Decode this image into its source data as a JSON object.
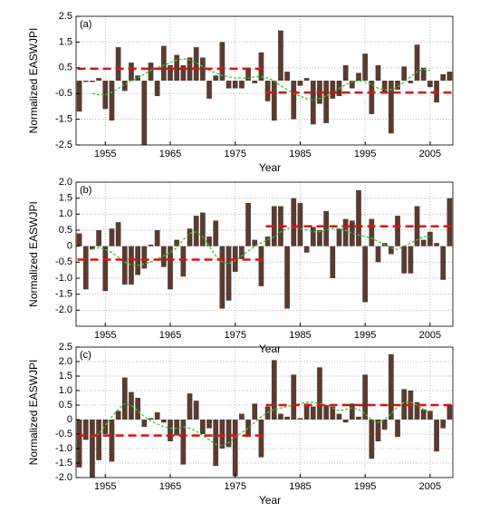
{
  "chart_data": [
    {
      "type": "bar",
      "label": "(a)",
      "y_label": "Normalized EASWJPI",
      "x_label": "Year",
      "x": [
        1951,
        1952,
        1953,
        1954,
        1955,
        1956,
        1957,
        1958,
        1959,
        1960,
        1961,
        1962,
        1963,
        1964,
        1965,
        1966,
        1967,
        1968,
        1969,
        1970,
        1971,
        1972,
        1973,
        1974,
        1975,
        1976,
        1977,
        1978,
        1979,
        1980,
        1981,
        1982,
        1983,
        1984,
        1985,
        1986,
        1987,
        1988,
        1989,
        1990,
        1991,
        1992,
        1993,
        1994,
        1995,
        1996,
        1997,
        1998,
        1999,
        2000,
        2001,
        2002,
        2003,
        2004,
        2005,
        2006,
        2007,
        2008
      ],
      "values": [
        -1.2,
        -0.05,
        -0.05,
        0.1,
        -1.1,
        -1.55,
        1.3,
        -0.4,
        0.7,
        0.2,
        -2.5,
        0.7,
        -0.6,
        1.35,
        0.6,
        1.0,
        0.6,
        0.9,
        1.3,
        0.9,
        -0.7,
        0.2,
        1.5,
        -0.3,
        -0.3,
        -0.3,
        0.5,
        -0.1,
        1.1,
        -0.8,
        -1.55,
        1.95,
        0.35,
        -1.5,
        -0.2,
        0.1,
        -1.7,
        -0.9,
        -1.65,
        -0.7,
        -0.6,
        0.6,
        -0.3,
        0.3,
        1.05,
        -1.3,
        0.6,
        -0.5,
        -2.05,
        -0.35,
        0.55,
        -0.1,
        1.4,
        0.5,
        -0.25,
        -0.85,
        0.25,
        0.35
      ],
      "smooth": [
        null,
        null,
        -0.5,
        -0.55,
        -0.55,
        -0.45,
        -0.3,
        -0.15,
        0.0,
        0.1,
        0.25,
        0.4,
        0.5,
        0.6,
        0.7,
        0.8,
        0.85,
        0.8,
        0.7,
        0.55,
        0.4,
        0.3,
        0.2,
        0.15,
        0.1,
        0.1,
        0.1,
        0.15,
        0.15,
        0.1,
        0.0,
        -0.2,
        -0.35,
        -0.5,
        -0.6,
        -0.7,
        -0.75,
        -0.7,
        -0.6,
        -0.45,
        -0.3,
        -0.15,
        -0.05,
        0.0,
        -0.05,
        -0.15,
        -0.3,
        -0.35,
        -0.35,
        -0.25,
        -0.05,
        0.15,
        0.35,
        0.45,
        0.4,
        null,
        null,
        null
      ],
      "mean_lines": [
        {
          "start": 1951,
          "end": 1979,
          "value": 0.46
        },
        {
          "start": 1980,
          "end": 2008,
          "value": -0.46
        }
      ],
      "xlim": [
        1950.5,
        2008.5
      ],
      "ylim": [
        -2.5,
        2.5
      ],
      "xticks": [
        1955,
        1965,
        1975,
        1985,
        1995,
        2005
      ],
      "yticks": [
        2.5,
        1.5,
        0.5,
        -0.5,
        -1.5,
        -2.5
      ],
      "grid": true,
      "bar_color": "#5a3b30",
      "smooth_color": "#33cc33",
      "mean_color": "#dd1111"
    },
    {
      "type": "bar",
      "label": "(b)",
      "y_label": "Normalized EASWJPI",
      "x_label": "Year",
      "x": [
        1951,
        1952,
        1953,
        1954,
        1955,
        1956,
        1957,
        1958,
        1959,
        1960,
        1961,
        1962,
        1963,
        1964,
        1965,
        1966,
        1967,
        1968,
        1969,
        1970,
        1971,
        1972,
        1973,
        1974,
        1975,
        1976,
        1977,
        1978,
        1979,
        1980,
        1981,
        1982,
        1983,
        1984,
        1985,
        1986,
        1987,
        1988,
        1989,
        1990,
        1991,
        1992,
        1993,
        1994,
        1995,
        1996,
        1997,
        1998,
        1999,
        2000,
        2001,
        2002,
        2003,
        2004,
        2005,
        2006,
        2007,
        2008
      ],
      "values": [
        0.4,
        -1.35,
        -0.1,
        0.5,
        -1.4,
        0.55,
        0.75,
        -1.2,
        -1.2,
        -0.9,
        -0.7,
        0.05,
        0.5,
        -0.65,
        -1.35,
        0.2,
        -0.95,
        0.55,
        0.95,
        1.05,
        0.3,
        0.8,
        -1.95,
        -1.7,
        -0.8,
        -0.4,
        1.35,
        0.2,
        -1.25,
        0.3,
        1.25,
        1.25,
        -1.95,
        1.5,
        1.35,
        -0.2,
        0.6,
        0.5,
        1.1,
        -1.0,
        0.55,
        0.85,
        0.8,
        1.75,
        -1.75,
        0.85,
        -0.5,
        0.1,
        -0.25,
        0.95,
        -0.85,
        -0.85,
        1.25,
        0.2,
        0.45,
        0.1,
        -1.05,
        1.5
      ],
      "smooth": [
        null,
        null,
        -0.1,
        -0.05,
        -0.1,
        -0.2,
        -0.35,
        -0.5,
        -0.6,
        -0.6,
        -0.55,
        -0.5,
        -0.4,
        -0.3,
        -0.2,
        -0.05,
        0.2,
        0.4,
        0.45,
        0.3,
        0.0,
        -0.3,
        -0.5,
        -0.55,
        -0.45,
        -0.3,
        -0.15,
        0.0,
        0.1,
        0.2,
        0.3,
        0.45,
        0.55,
        0.6,
        0.55,
        0.5,
        0.45,
        0.45,
        0.5,
        0.55,
        0.55,
        0.5,
        0.4,
        0.35,
        0.3,
        0.25,
        0.15,
        0.05,
        -0.05,
        -0.1,
        0.0,
        0.1,
        0.2,
        0.3,
        0.3,
        null,
        null,
        null
      ],
      "mean_lines": [
        {
          "start": 1951,
          "end": 1979,
          "value": -0.42
        },
        {
          "start": 1980,
          "end": 2008,
          "value": 0.62
        }
      ],
      "xlim": [
        1950.5,
        2008.5
      ],
      "ylim": [
        -2.5,
        2.0
      ],
      "xticks": [
        1955,
        1965,
        1975,
        1985,
        1995,
        2005
      ],
      "yticks": [
        {
          "value": 2,
          "label": "2.0"
        },
        1.5,
        {
          "value": 1,
          "label": "1.0"
        },
        0.5,
        0,
        -0.5,
        {
          "value": -1,
          "label": "-1.0"
        },
        -1.5,
        {
          "value": -2,
          "label": "-2.0"
        }
      ],
      "grid": true,
      "bar_color": "#5a3b30",
      "smooth_color": "#33cc33",
      "mean_color": "#dd1111"
    },
    {
      "type": "bar",
      "label": "(c)",
      "y_label": "Normalized EASWJPI",
      "x_label": "Year",
      "x": [
        1951,
        1952,
        1953,
        1954,
        1955,
        1956,
        1957,
        1958,
        1959,
        1960,
        1961,
        1962,
        1963,
        1964,
        1965,
        1966,
        1967,
        1968,
        1969,
        1970,
        1971,
        1972,
        1973,
        1974,
        1975,
        1976,
        1977,
        1978,
        1979,
        1980,
        1981,
        1982,
        1983,
        1984,
        1985,
        1986,
        1987,
        1988,
        1989,
        1990,
        1991,
        1992,
        1993,
        1994,
        1995,
        1996,
        1997,
        1998,
        1999,
        2000,
        2001,
        2002,
        2003,
        2004,
        2005,
        2006,
        2007,
        2008
      ],
      "values": [
        -1.65,
        -0.7,
        -2.0,
        -1.4,
        -0.5,
        -1.45,
        0.3,
        1.45,
        0.95,
        0.75,
        -0.25,
        0.05,
        0.25,
        -0.1,
        -0.75,
        -0.55,
        -1.55,
        0.9,
        0.65,
        -0.5,
        -0.3,
        -1.6,
        -1.0,
        -0.95,
        -1.95,
        0.2,
        -0.6,
        0.55,
        -1.3,
        0.45,
        2.05,
        0.2,
        0.1,
        1.55,
        0.05,
        0.55,
        0.45,
        1.8,
        0.5,
        0.45,
        0.2,
        -0.1,
        0.55,
        0.1,
        1.55,
        -1.35,
        -0.75,
        -0.35,
        2.25,
        -0.6,
        1.05,
        1.0,
        0.6,
        0.35,
        0.3,
        -1.1,
        -0.3,
        0.5
      ],
      "smooth": [
        null,
        null,
        -0.6,
        -0.5,
        -0.2,
        0.1,
        0.35,
        0.55,
        0.5,
        0.3,
        0.1,
        -0.05,
        -0.15,
        -0.25,
        -0.3,
        -0.3,
        -0.25,
        -0.3,
        -0.4,
        -0.55,
        -0.7,
        -0.85,
        -0.9,
        -0.8,
        -0.6,
        -0.45,
        -0.3,
        -0.1,
        0.1,
        0.25,
        0.35,
        0.4,
        0.45,
        0.5,
        0.55,
        0.6,
        0.6,
        0.55,
        0.5,
        0.4,
        0.3,
        0.35,
        0.4,
        0.35,
        0.2,
        0.0,
        -0.1,
        0.0,
        0.2,
        0.45,
        0.6,
        0.6,
        0.5,
        0.35,
        0.2,
        null,
        null,
        null
      ],
      "mean_lines": [
        {
          "start": 1951,
          "end": 1979,
          "value": -0.55
        },
        {
          "start": 1980,
          "end": 2008,
          "value": 0.5
        }
      ],
      "xlim": [
        1950.5,
        2008.5
      ],
      "ylim": [
        -2.0,
        2.5
      ],
      "xticks": [
        1955,
        1965,
        1975,
        1985,
        1995,
        2005
      ],
      "yticks": [
        2.5,
        {
          "value": 2,
          "label": "2.0"
        },
        1.5,
        {
          "value": 1,
          "label": "1.0"
        },
        0.5,
        0,
        -0.5,
        {
          "value": -1,
          "label": "-1.0"
        },
        -1.5,
        {
          "value": -2,
          "label": "-2.0"
        }
      ],
      "grid": true,
      "bar_color": "#5a3b30",
      "smooth_color": "#33cc33",
      "mean_color": "#dd1111"
    }
  ]
}
